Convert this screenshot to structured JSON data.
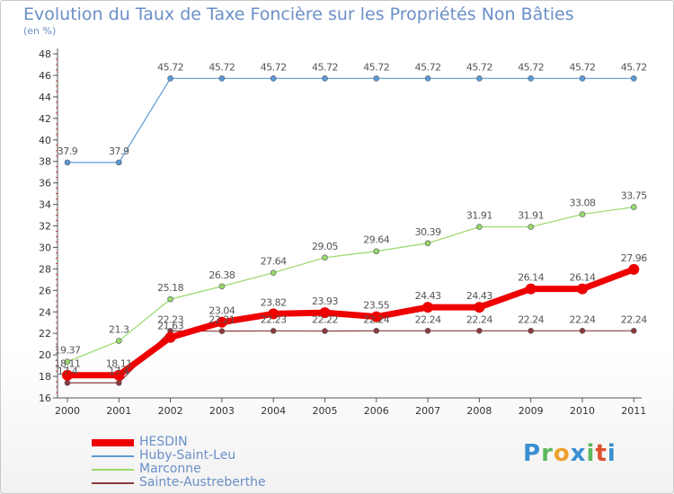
{
  "title": "Evolution du Taux de Taxe Foncière sur les Propriétés Non Bâties",
  "unit_label": "(en %)",
  "brand": {
    "text": "Proxiti",
    "letters": [
      "P",
      "r",
      "o",
      "x",
      "i",
      "t",
      "i"
    ],
    "colors": [
      "#3a8fd0",
      "#5cb85c",
      "#f0a030",
      "#3a8fd0",
      "#5cb85c",
      "#e05030",
      "#3a8fd0"
    ]
  },
  "chart_data": {
    "type": "line",
    "title": "Evolution du Taux de Taxe Foncière sur les Propriétés Non Bâties",
    "ylabel": "(en %)",
    "xlabel": "",
    "x": [
      "2000",
      "2001",
      "2002",
      "2003",
      "2004",
      "2005",
      "2006",
      "2007",
      "2008",
      "2009",
      "2010",
      "2011"
    ],
    "ylim": [
      16,
      48
    ],
    "yticks": [
      16,
      18,
      20,
      22,
      24,
      26,
      28,
      30,
      32,
      34,
      36,
      38,
      40,
      42,
      44,
      46,
      48
    ],
    "grid": false,
    "legend_position": "bottom-left",
    "series": [
      {
        "name": "HESDIN",
        "color": "#ee0000",
        "width": 7,
        "marker": 6,
        "values": [
          18.11,
          18.11,
          21.63,
          23.04,
          23.82,
          23.93,
          23.55,
          24.43,
          24.43,
          26.14,
          26.14,
          27.96
        ],
        "labels": [
          "18.11",
          "18.11",
          "21.63",
          "23.04",
          "23.82",
          "23.93",
          "23.55",
          "24.43",
          "24.43",
          "26.14",
          "26.14",
          "27.96"
        ]
      },
      {
        "name": "Huby-Saint-Leu",
        "color": "#5b9bd5",
        "width": 1.2,
        "marker": 3,
        "values": [
          37.9,
          37.9,
          45.72,
          45.72,
          45.72,
          45.72,
          45.72,
          45.72,
          45.72,
          45.72,
          45.72,
          45.72
        ],
        "labels": [
          "37.9",
          "37.9",
          "45.72",
          "45.72",
          "45.72",
          "45.72",
          "45.72",
          "45.72",
          "45.72",
          "45.72",
          "45.72",
          "45.72"
        ]
      },
      {
        "name": "Marconne",
        "color": "#98d86a",
        "width": 1.2,
        "marker": 3,
        "values": [
          19.37,
          21.3,
          25.18,
          26.38,
          27.64,
          29.05,
          29.64,
          30.39,
          31.91,
          31.91,
          33.08,
          33.75
        ],
        "labels": [
          "19.37",
          "21.3",
          "25.18",
          "26.38",
          "27.64",
          "29.05",
          "29.64",
          "30.39",
          "31.91",
          "31.91",
          "33.08",
          "33.75"
        ]
      },
      {
        "name": "Sainte-Austreberthe",
        "color": "#8b3a3a",
        "width": 1.2,
        "marker": 3,
        "values": [
          17.4,
          17.4,
          22.23,
          22.21,
          22.23,
          22.22,
          22.24,
          22.24,
          22.24,
          22.24,
          22.24,
          22.24
        ],
        "labels": [
          "17.4",
          "17.4",
          "22.23",
          "22.21",
          "22.23",
          "22.22",
          "22.24",
          "22.24",
          "22.24",
          "22.24",
          "22.24",
          "22.24"
        ]
      }
    ]
  }
}
